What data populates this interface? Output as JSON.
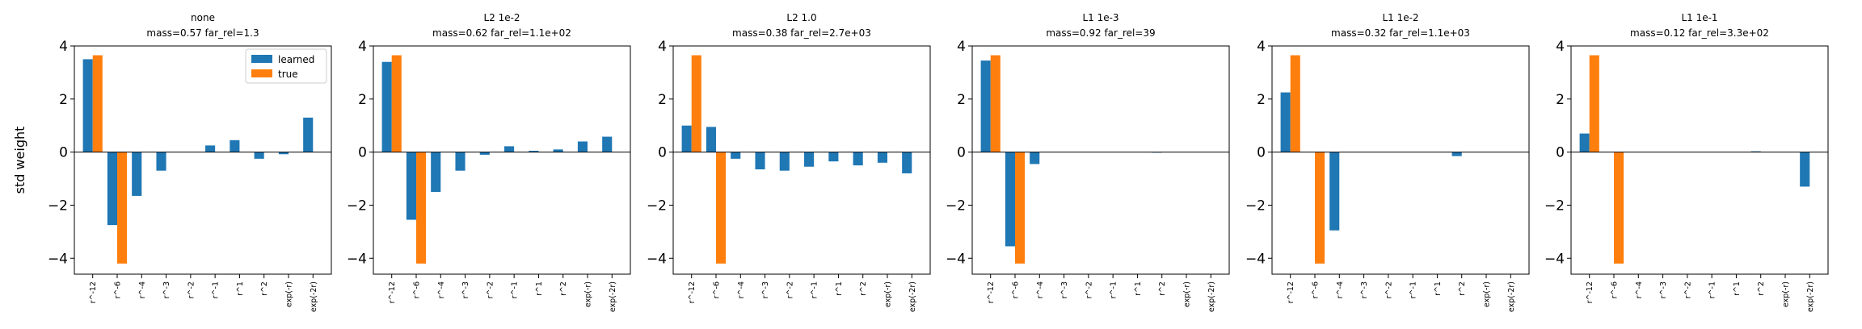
{
  "figure": {
    "ylabel": "std weight",
    "legend": {
      "entries": [
        "learned",
        "true"
      ],
      "placement": "upper right of first panel"
    },
    "colors": {
      "learned": "#1f77b4",
      "true": "#ff7f0e"
    }
  },
  "chart_data": [
    {
      "type": "bar",
      "title": "none",
      "subtitle": "mass=0.57 far_rel=1.3",
      "categories": [
        "r^-12",
        "r^-6",
        "r^-4",
        "r^-3",
        "r^-2",
        "r^-1",
        "r^1",
        "r^2",
        "exp(-r)",
        "exp(-2r)"
      ],
      "series": [
        {
          "name": "learned",
          "values": [
            3.5,
            -2.75,
            -1.65,
            -0.7,
            0.0,
            0.25,
            0.45,
            -0.25,
            -0.08,
            1.3
          ]
        },
        {
          "name": "true",
          "values": [
            3.65,
            -4.2,
            0,
            0,
            0,
            0,
            0,
            0,
            0,
            0
          ]
        }
      ],
      "ylim": [
        -4.6,
        4.0
      ],
      "yticks": [
        4,
        2,
        0,
        -2,
        -4
      ],
      "hline": 0
    },
    {
      "type": "bar",
      "title": "L2 1e-2",
      "subtitle": "mass=0.62 far_rel=1.1e+02",
      "categories": [
        "r^-12",
        "r^-6",
        "r^-4",
        "r^-3",
        "r^-2",
        "r^-1",
        "r^1",
        "r^2",
        "exp(-r)",
        "exp(-2r)"
      ],
      "series": [
        {
          "name": "learned",
          "values": [
            3.4,
            -2.55,
            -1.5,
            -0.7,
            -0.1,
            0.22,
            0.05,
            0.1,
            0.4,
            0.58
          ]
        },
        {
          "name": "true",
          "values": [
            3.65,
            -4.2,
            0,
            0,
            0,
            0,
            0,
            0,
            0,
            0
          ]
        }
      ],
      "ylim": [
        -4.6,
        4.0
      ],
      "yticks": [
        4,
        2,
        0,
        -2,
        -4
      ],
      "hline": 0
    },
    {
      "type": "bar",
      "title": "L2 1.0",
      "subtitle": "mass=0.38 far_rel=2.7e+03",
      "categories": [
        "r^-12",
        "r^-6",
        "r^-4",
        "r^-3",
        "r^-2",
        "r^-1",
        "r^1",
        "r^2",
        "exp(-r)",
        "exp(-2r)"
      ],
      "series": [
        {
          "name": "learned",
          "values": [
            1.0,
            0.95,
            -0.25,
            -0.65,
            -0.7,
            -0.55,
            -0.35,
            -0.5,
            -0.4,
            -0.8
          ]
        },
        {
          "name": "true",
          "values": [
            3.65,
            -4.2,
            0,
            0,
            0,
            0,
            0,
            0,
            0,
            0
          ]
        }
      ],
      "ylim": [
        -4.6,
        4.0
      ],
      "yticks": [
        4,
        2,
        0,
        -2,
        -4
      ],
      "hline": 0
    },
    {
      "type": "bar",
      "title": "L1 1e-3",
      "subtitle": "mass=0.92 far_rel=39",
      "categories": [
        "r^-12",
        "r^-6",
        "r^-4",
        "r^-3",
        "r^-2",
        "r^-1",
        "r^1",
        "r^2",
        "exp(-r)",
        "exp(-2r)"
      ],
      "series": [
        {
          "name": "learned",
          "values": [
            3.45,
            -3.55,
            -0.45,
            0,
            0,
            0,
            0,
            -0.02,
            0,
            0
          ]
        },
        {
          "name": "true",
          "values": [
            3.65,
            -4.2,
            0,
            0,
            0,
            0,
            0,
            0,
            0,
            0
          ]
        }
      ],
      "ylim": [
        -4.6,
        4.0
      ],
      "yticks": [
        4,
        2,
        0,
        -2,
        -4
      ],
      "hline": 0
    },
    {
      "type": "bar",
      "title": "L1 1e-2",
      "subtitle": "mass=0.32 far_rel=1.1e+03",
      "categories": [
        "r^-12",
        "r^-6",
        "r^-4",
        "r^-3",
        "r^-2",
        "r^-1",
        "r^1",
        "r^2",
        "exp(-r)",
        "exp(-2r)"
      ],
      "series": [
        {
          "name": "learned",
          "values": [
            2.25,
            0,
            -2.95,
            0,
            0,
            0,
            0,
            -0.15,
            0,
            0
          ]
        },
        {
          "name": "true",
          "values": [
            3.65,
            -4.2,
            0,
            0,
            0,
            0,
            0,
            0,
            0,
            0
          ]
        }
      ],
      "ylim": [
        -4.6,
        4.0
      ],
      "yticks": [
        4,
        2,
        0,
        -2,
        -4
      ],
      "hline": 0
    },
    {
      "type": "bar",
      "title": "L1 1e-1",
      "subtitle": "mass=0.12 far_rel=3.3e+02",
      "categories": [
        "r^-12",
        "r^-6",
        "r^-4",
        "r^-3",
        "r^-2",
        "r^-1",
        "r^1",
        "r^2",
        "exp(-r)",
        "exp(-2r)"
      ],
      "series": [
        {
          "name": "learned",
          "values": [
            0.7,
            0,
            0,
            0,
            0,
            0,
            0,
            0.03,
            0,
            -1.3
          ]
        },
        {
          "name": "true",
          "values": [
            3.65,
            -4.2,
            0,
            0,
            0,
            0,
            0,
            0,
            0,
            0
          ]
        }
      ],
      "ylim": [
        -4.6,
        4.0
      ],
      "yticks": [
        4,
        2,
        0,
        -2,
        -4
      ],
      "hline": 0
    }
  ]
}
